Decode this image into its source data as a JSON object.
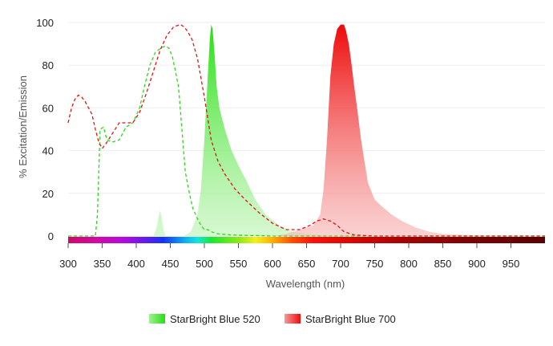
{
  "chart_data": {
    "type": "area",
    "title": "",
    "xlabel": "Wavelength (nm)",
    "ylabel": "% Excitation/Emission",
    "xlim": [
      300,
      1000
    ],
    "ylim": [
      0,
      100
    ],
    "x_ticks": [
      300,
      350,
      400,
      450,
      500,
      550,
      600,
      650,
      700,
      750,
      800,
      850,
      900,
      950
    ],
    "y_ticks": [
      0,
      20,
      40,
      60,
      80,
      100
    ],
    "grid": true,
    "legend_position": "bottom",
    "series": [
      {
        "name": "StarBright Blue 520",
        "color": "#2ee31c",
        "excitation": {
          "x": [
            300,
            335,
            340,
            343,
            347,
            352,
            357,
            365,
            375,
            385,
            395,
            405,
            412,
            420,
            428,
            436,
            443,
            448,
            453,
            457,
            462,
            467,
            472,
            478,
            483,
            490,
            495,
            500,
            505,
            510,
            520,
            540,
            560,
            580,
            600,
            640,
            700,
            800,
            900,
            1000
          ],
          "y": [
            0,
            0,
            0,
            10,
            50,
            51,
            45,
            44,
            45,
            51,
            53,
            60,
            70,
            80,
            86,
            88,
            89,
            88,
            84,
            78,
            70,
            50,
            30,
            20,
            13,
            8,
            5,
            3,
            3,
            2,
            1,
            0.5,
            0.3,
            0.2,
            0,
            0,
            0,
            0,
            0,
            0
          ]
        },
        "emission": {
          "x": [
            300,
            425,
            430,
            433,
            435,
            437,
            440,
            443,
            450,
            470,
            480,
            490,
            495,
            500,
            505,
            508,
            510,
            512,
            515,
            518,
            522,
            530,
            540,
            550,
            560,
            575,
            590,
            610,
            630,
            650,
            680,
            700,
            800,
            1000
          ],
          "y": [
            0,
            0,
            4,
            9,
            12,
            9,
            3,
            0,
            0,
            0,
            2,
            10,
            22,
            45,
            75,
            92,
            99,
            97,
            85,
            70,
            60,
            50,
            40,
            33,
            27,
            17,
            10,
            5,
            2,
            1,
            0.3,
            0,
            0,
            0
          ]
        }
      },
      {
        "name": "StarBright Blue 700",
        "color": "#ee1111",
        "excitation": {
          "x": [
            300,
            305,
            310,
            315,
            320,
            325,
            330,
            335,
            340,
            345,
            350,
            355,
            365,
            375,
            385,
            395,
            405,
            415,
            425,
            435,
            445,
            455,
            465,
            470,
            475,
            482,
            490,
            500,
            510,
            520,
            530,
            545,
            560,
            580,
            600,
            620,
            640,
            655,
            665,
            675,
            685,
            695,
            705,
            720,
            750,
            800,
            900,
            1000
          ],
          "y": [
            53,
            60,
            64,
            66,
            65,
            63,
            60,
            57,
            50,
            44,
            41,
            43,
            48,
            53,
            53,
            53,
            58,
            67,
            77,
            87,
            94,
            98,
            99,
            98,
            96,
            92,
            83,
            65,
            45,
            35,
            29,
            22,
            17,
            11,
            6,
            3,
            3,
            5,
            7,
            8,
            7,
            5,
            2,
            0.5,
            0,
            0,
            0,
            0
          ]
        },
        "emission": {
          "x": [
            300,
            590,
            600,
            620,
            640,
            660,
            670,
            675,
            680,
            685,
            690,
            695,
            700,
            705,
            708,
            712,
            715,
            720,
            725,
            730,
            740,
            750,
            760,
            775,
            790,
            810,
            830,
            850,
            900,
            1000
          ],
          "y": [
            0,
            0,
            0,
            1,
            3,
            5,
            10,
            22,
            45,
            75,
            90,
            97,
            99,
            99,
            96,
            90,
            83,
            70,
            58,
            45,
            25,
            17,
            14,
            10,
            7,
            4,
            2,
            1,
            0.3,
            0
          ]
        }
      }
    ],
    "legend": [
      "StarBright Blue 520",
      "StarBright Blue 700"
    ]
  }
}
